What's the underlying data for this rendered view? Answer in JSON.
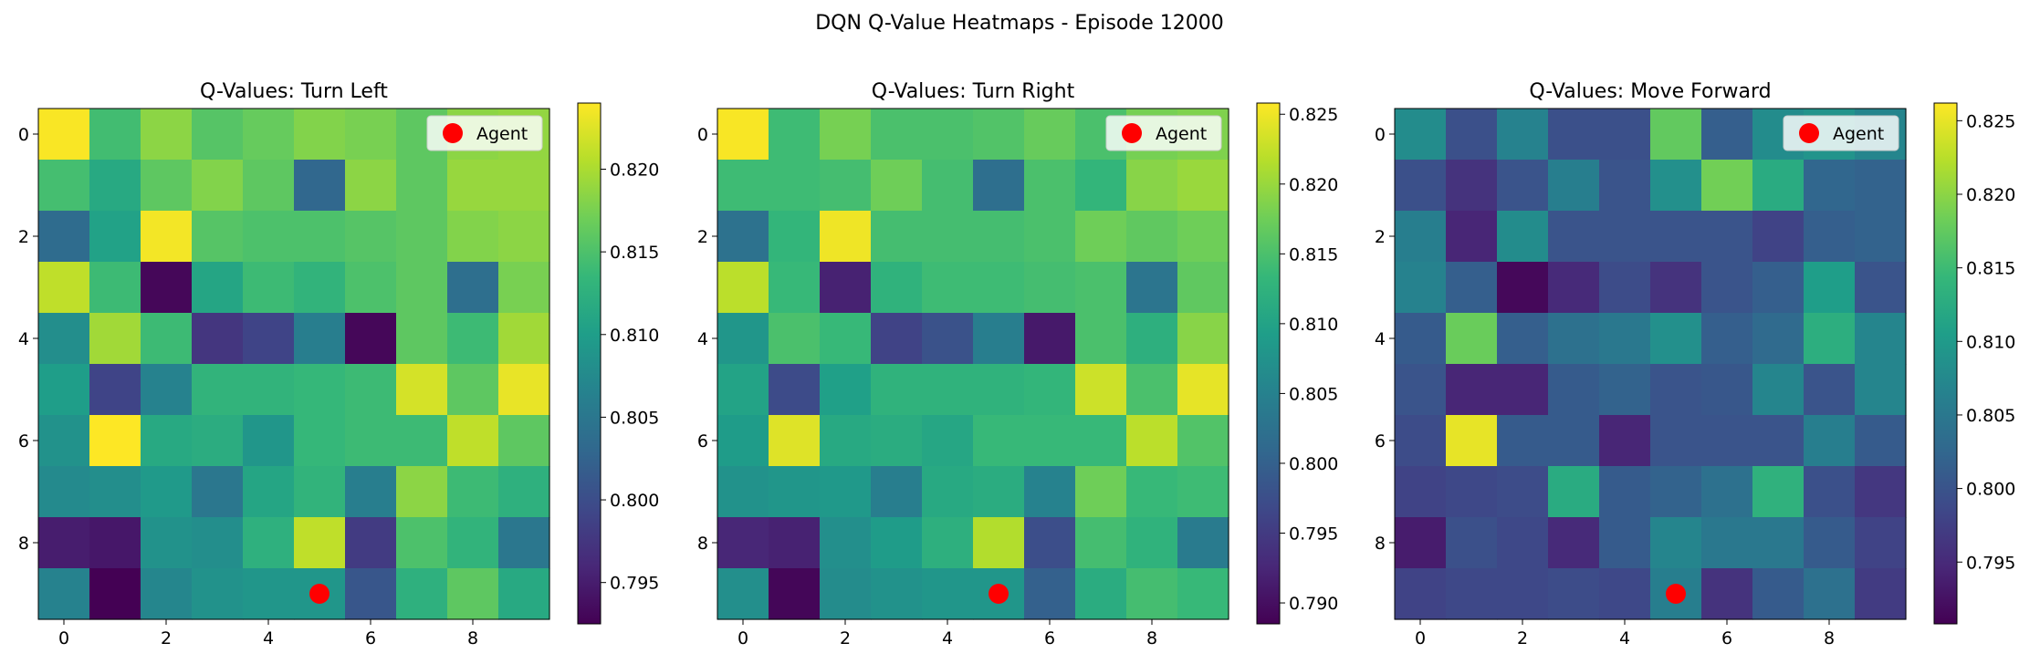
{
  "figure": {
    "title": "DQN Q-Value Heatmaps - Episode 12000"
  },
  "legend_label": "Agent",
  "agent_color": "#ff0000",
  "colormap": "viridis",
  "chart_data": [
    {
      "type": "heatmap",
      "title": "Q-Values: Turn Left",
      "x": [
        0,
        1,
        2,
        3,
        4,
        5,
        6,
        7,
        8,
        9
      ],
      "y": [
        0,
        1,
        2,
        3,
        4,
        5,
        6,
        7,
        8,
        9
      ],
      "xticks": [
        0,
        2,
        4,
        6,
        8
      ],
      "yticks": [
        0,
        2,
        4,
        6,
        8
      ],
      "values": [
        [
          0.8238,
          0.8143,
          0.8185,
          0.8155,
          0.8165,
          0.818,
          0.8175,
          0.816,
          0.8185,
          0.8188
        ],
        [
          0.8145,
          0.8115,
          0.816,
          0.818,
          0.816,
          0.803,
          0.8185,
          0.816,
          0.819,
          0.819
        ],
        [
          0.8035,
          0.8105,
          0.8235,
          0.8155,
          0.815,
          0.815,
          0.8155,
          0.816,
          0.818,
          0.8185
        ],
        [
          0.821,
          0.814,
          0.793,
          0.811,
          0.814,
          0.813,
          0.815,
          0.816,
          0.804,
          0.8175
        ],
        [
          0.808,
          0.8195,
          0.814,
          0.7975,
          0.799,
          0.806,
          0.793,
          0.816,
          0.814,
          0.8195
        ],
        [
          0.81,
          0.799,
          0.8065,
          0.813,
          0.813,
          0.8135,
          0.814,
          0.822,
          0.816,
          0.823
        ],
        [
          0.8085,
          0.824,
          0.8115,
          0.812,
          0.809,
          0.8135,
          0.814,
          0.814,
          0.821,
          0.816
        ],
        [
          0.8075,
          0.808,
          0.8095,
          0.805,
          0.811,
          0.813,
          0.806,
          0.8185,
          0.814,
          0.8125
        ],
        [
          0.795,
          0.7945,
          0.8085,
          0.808,
          0.8125,
          0.821,
          0.798,
          0.815,
          0.813,
          0.805
        ],
        [
          0.8065,
          0.7925,
          0.807,
          0.8085,
          0.809,
          0.809,
          0.801,
          0.8125,
          0.816,
          0.8115
        ]
      ],
      "agent": {
        "x": 5,
        "y": 9
      },
      "colorbar": {
        "min": 0.7925,
        "max": 0.824,
        "ticks": [
          0.795,
          0.8,
          0.805,
          0.81,
          0.815,
          0.82
        ]
      },
      "legend_position": "top-right"
    },
    {
      "type": "heatmap",
      "title": "Q-Values: Turn Right",
      "x": [
        0,
        1,
        2,
        3,
        4,
        5,
        6,
        7,
        8,
        9
      ],
      "y": [
        0,
        1,
        2,
        3,
        4,
        5,
        6,
        7,
        8,
        9
      ],
      "xticks": [
        0,
        2,
        4,
        6,
        8
      ],
      "yticks": [
        0,
        2,
        4,
        6,
        8
      ],
      "values": [
        [
          0.8255,
          0.814,
          0.818,
          0.815,
          0.815,
          0.8155,
          0.817,
          0.815,
          0.818,
          0.8185
        ],
        [
          0.814,
          0.814,
          0.8145,
          0.8175,
          0.8145,
          0.802,
          0.815,
          0.813,
          0.819,
          0.82
        ],
        [
          0.8025,
          0.813,
          0.825,
          0.8145,
          0.8145,
          0.8145,
          0.815,
          0.8175,
          0.8165,
          0.8175
        ],
        [
          0.822,
          0.8135,
          0.792,
          0.8125,
          0.814,
          0.814,
          0.8145,
          0.815,
          0.803,
          0.8165
        ],
        [
          0.808,
          0.815,
          0.8135,
          0.796,
          0.798,
          0.8045,
          0.791,
          0.815,
          0.812,
          0.819
        ],
        [
          0.81,
          0.797,
          0.8095,
          0.8125,
          0.8125,
          0.8125,
          0.813,
          0.823,
          0.815,
          0.8245
        ],
        [
          0.809,
          0.824,
          0.811,
          0.8115,
          0.8105,
          0.8135,
          0.8135,
          0.8135,
          0.822,
          0.8155
        ],
        [
          0.8075,
          0.808,
          0.8085,
          0.8045,
          0.811,
          0.8115,
          0.805,
          0.8175,
          0.8135,
          0.814
        ],
        [
          0.7925,
          0.792,
          0.807,
          0.809,
          0.812,
          0.8215,
          0.7975,
          0.8145,
          0.8125,
          0.804
        ],
        [
          0.807,
          0.789,
          0.8065,
          0.8075,
          0.808,
          0.808,
          0.8,
          0.8115,
          0.8145,
          0.8135
        ]
      ],
      "agent": {
        "x": 5,
        "y": 9
      },
      "colorbar": {
        "min": 0.7885,
        "max": 0.8258,
        "ticks": [
          0.79,
          0.795,
          0.8,
          0.805,
          0.81,
          0.815,
          0.82,
          0.825
        ]
      },
      "legend_position": "top-right"
    },
    {
      "type": "heatmap",
      "title": "Q-Values: Move Forward",
      "x": [
        0,
        1,
        2,
        3,
        4,
        5,
        6,
        7,
        8,
        9
      ],
      "y": [
        0,
        1,
        2,
        3,
        4,
        5,
        6,
        7,
        8,
        9
      ],
      "xticks": [
        0,
        2,
        4,
        6,
        8
      ],
      "yticks": [
        0,
        2,
        4,
        6,
        8
      ],
      "values": [
        [
          0.808,
          0.7995,
          0.8065,
          0.7995,
          0.7995,
          0.8175,
          0.8015,
          0.808,
          0.809,
          0.807
        ],
        [
          0.7995,
          0.796,
          0.8,
          0.806,
          0.8,
          0.8085,
          0.8185,
          0.8125,
          0.8025,
          0.802
        ],
        [
          0.806,
          0.7945,
          0.808,
          0.8,
          0.8,
          0.8,
          0.8,
          0.798,
          0.8015,
          0.802
        ],
        [
          0.8065,
          0.8015,
          0.7915,
          0.795,
          0.799,
          0.796,
          0.8,
          0.8015,
          0.8105,
          0.8
        ],
        [
          0.801,
          0.818,
          0.8015,
          0.804,
          0.805,
          0.8085,
          0.8015,
          0.803,
          0.813,
          0.807
        ],
        [
          0.8,
          0.7945,
          0.7945,
          0.801,
          0.802,
          0.8,
          0.8005,
          0.807,
          0.8,
          0.807
        ],
        [
          0.799,
          0.825,
          0.801,
          0.801,
          0.7945,
          0.8,
          0.8,
          0.8,
          0.806,
          0.801
        ],
        [
          0.798,
          0.7985,
          0.799,
          0.8125,
          0.801,
          0.802,
          0.804,
          0.8135,
          0.7995,
          0.7965
        ],
        [
          0.7935,
          0.7995,
          0.7985,
          0.795,
          0.801,
          0.807,
          0.805,
          0.805,
          0.801,
          0.798
        ],
        [
          0.798,
          0.7985,
          0.7985,
          0.799,
          0.7985,
          0.806,
          0.796,
          0.801,
          0.804,
          0.797
        ]
      ],
      "agent": {
        "x": 5,
        "y": 9
      },
      "colorbar": {
        "min": 0.7908,
        "max": 0.8262,
        "ticks": [
          0.795,
          0.8,
          0.805,
          0.81,
          0.815,
          0.82,
          0.825
        ]
      },
      "legend_position": "top-right"
    }
  ]
}
